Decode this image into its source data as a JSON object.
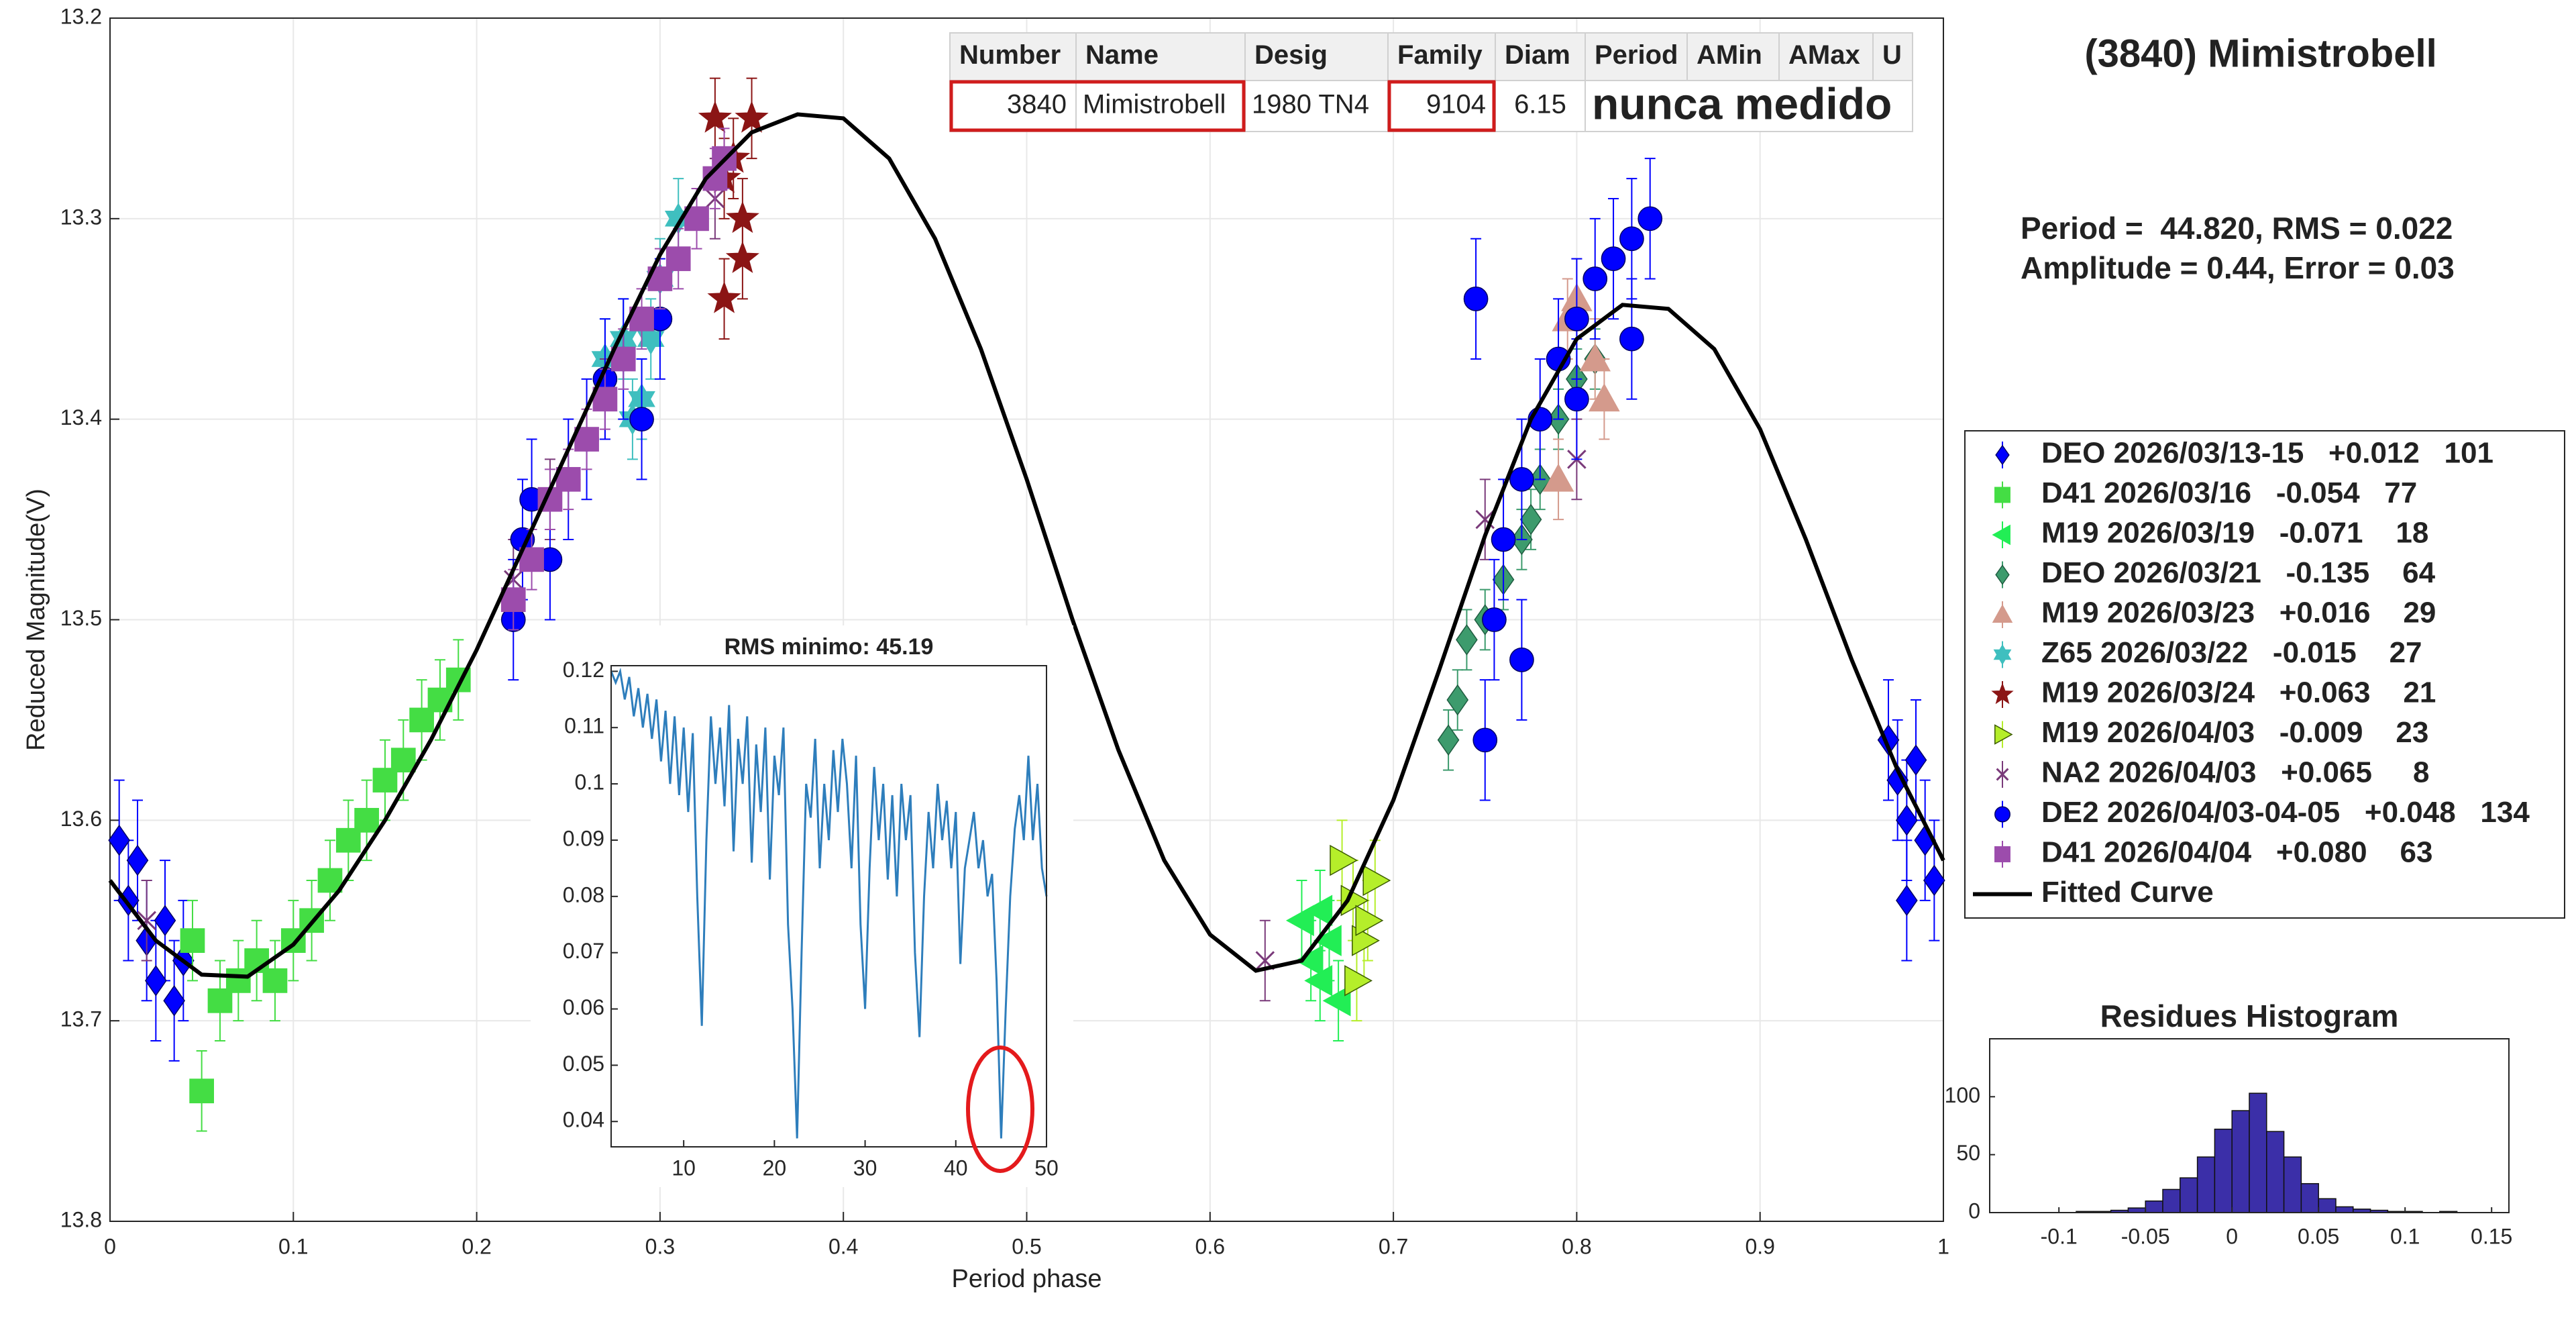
{
  "header": {
    "title": "(3840) Mimistrobell",
    "lines": [
      "Period =  44.820, RMS = 0.022",
      "Amplitude = 0.44, Error = 0.03"
    ]
  },
  "table": {
    "columns": [
      "Number",
      "Name",
      "Desig",
      "Family",
      "Diam",
      "Period",
      "AMin",
      "AMax",
      "U"
    ],
    "rows": [
      [
        "3840",
        "Mimistrobell",
        "1980 TN4",
        "9104",
        "6.15",
        "nunca medido"
      ]
    ]
  },
  "chart_data": [
    {
      "type": "scatter",
      "x_label": "Period phase",
      "y_label": "Reduced Magnitude(V)",
      "xlim": [
        0,
        1
      ],
      "ylim": [
        13.2,
        13.8
      ],
      "y_inverted": true,
      "xticks": [
        0,
        0.1,
        0.2,
        0.3,
        0.4,
        0.5,
        0.6,
        0.7,
        0.8,
        0.9,
        1
      ],
      "yticks": [
        13.2,
        13.3,
        13.4,
        13.5,
        13.6,
        13.7,
        13.8
      ],
      "grid": true,
      "legend": "outside-right",
      "series": [
        {
          "name": "DEO 2026/03/13-15   +0.012   101",
          "color": "#0000ff",
          "marker": "diamond",
          "x": [
            0.005,
            0.01,
            0.015,
            0.02,
            0.025,
            0.03,
            0.035,
            0.04,
            0.97,
            0.975,
            0.98,
            0.985,
            0.99,
            0.995,
            0.98
          ],
          "values": [
            13.61,
            13.64,
            13.62,
            13.66,
            13.68,
            13.65,
            13.69,
            13.67,
            13.56,
            13.58,
            13.6,
            13.57,
            13.61,
            13.63,
            13.64
          ],
          "errors": [
            0.03,
            0.03,
            0.03,
            0.03,
            0.03,
            0.03,
            0.03,
            0.03,
            0.03,
            0.03,
            0.03,
            0.03,
            0.03,
            0.03,
            0.03
          ]
        },
        {
          "name": "D41 2026/03/16   -0.054   77",
          "color": "#44dd44",
          "marker": "square",
          "x": [
            0.045,
            0.05,
            0.06,
            0.07,
            0.08,
            0.09,
            0.1,
            0.11,
            0.12,
            0.13,
            0.14,
            0.15,
            0.16,
            0.17,
            0.18,
            0.19
          ],
          "values": [
            13.66,
            13.735,
            13.69,
            13.68,
            13.67,
            13.68,
            13.66,
            13.65,
            13.63,
            13.61,
            13.6,
            13.58,
            13.57,
            13.55,
            13.54,
            13.53
          ],
          "errors": [
            0.02,
            0.02,
            0.02,
            0.02,
            0.02,
            0.02,
            0.02,
            0.02,
            0.02,
            0.02,
            0.02,
            0.02,
            0.02,
            0.02,
            0.02,
            0.02
          ]
        },
        {
          "name": "M19 2026/03/19   -0.071    18",
          "color": "#22ee55",
          "marker": "triangle-left",
          "x": [
            0.65,
            0.655,
            0.66,
            0.665,
            0.67,
            0.66
          ],
          "values": [
            13.65,
            13.67,
            13.68,
            13.66,
            13.69,
            13.645
          ],
          "errors": [
            0.02,
            0.02,
            0.02,
            0.02,
            0.02,
            0.02
          ]
        },
        {
          "name": "DEO 2026/03/21   -0.135    64",
          "color": "#3d9b6d",
          "marker": "diamond",
          "x": [
            0.73,
            0.735,
            0.74,
            0.75,
            0.76,
            0.77,
            0.775,
            0.78,
            0.79,
            0.8,
            0.81
          ],
          "values": [
            13.56,
            13.54,
            13.51,
            13.5,
            13.48,
            13.46,
            13.45,
            13.43,
            13.4,
            13.38,
            13.37
          ],
          "errors": [
            0.015,
            0.015,
            0.015,
            0.015,
            0.015,
            0.015,
            0.015,
            0.015,
            0.015,
            0.015,
            0.015
          ]
        },
        {
          "name": "M19 2026/03/23   +0.016    29",
          "color": "#d49a8c",
          "marker": "triangle-up",
          "x": [
            0.79,
            0.795,
            0.8,
            0.81,
            0.815
          ],
          "values": [
            13.43,
            13.35,
            13.34,
            13.37,
            13.39
          ],
          "errors": [
            0.02,
            0.02,
            0.02,
            0.02,
            0.02
          ]
        },
        {
          "name": "Z65 2026/03/22   -0.015    27",
          "color": "#3fbfbf",
          "marker": "hexagram",
          "x": [
            0.27,
            0.28,
            0.285,
            0.29,
            0.295,
            0.3,
            0.31
          ],
          "values": [
            13.37,
            13.36,
            13.4,
            13.39,
            13.36,
            13.33,
            13.3
          ],
          "errors": [
            0.02,
            0.02,
            0.02,
            0.02,
            0.02,
            0.02,
            0.02
          ]
        },
        {
          "name": "M19 2026/03/24   +0.063    21",
          "color": "#8b1515",
          "marker": "pentagram",
          "x": [
            0.33,
            0.335,
            0.34,
            0.345,
            0.35,
            0.345,
            0.335
          ],
          "values": [
            13.25,
            13.28,
            13.27,
            13.3,
            13.25,
            13.32,
            13.34
          ],
          "errors": [
            0.02,
            0.02,
            0.02,
            0.02,
            0.02,
            0.02,
            0.02
          ]
        },
        {
          "name": "M19 2026/04/03   -0.009    23",
          "color": "#b5ee2a",
          "marker": "triangle-right",
          "x": [
            0.672,
            0.678,
            0.684,
            0.69,
            0.68,
            0.686
          ],
          "values": [
            13.62,
            13.64,
            13.66,
            13.63,
            13.68,
            13.65
          ],
          "errors": [
            0.02,
            0.02,
            0.02,
            0.02,
            0.02,
            0.02
          ]
        },
        {
          "name": "NA2 2026/04/03   +0.065     8",
          "color": "#7a3a7a",
          "marker": "x",
          "x": [
            0.22,
            0.24,
            0.27,
            0.8,
            0.02,
            0.33,
            0.75,
            0.63
          ],
          "values": [
            13.48,
            13.44,
            13.39,
            13.42,
            13.65,
            13.29,
            13.45,
            13.67
          ],
          "errors": [
            0.02,
            0.02,
            0.02,
            0.02,
            0.02,
            0.02,
            0.02,
            0.02
          ]
        },
        {
          "name": "DE2 2026/04/03-04-05   +0.048   134",
          "color": "#0000ff",
          "marker": "circle",
          "x": [
            0.22,
            0.225,
            0.23,
            0.24,
            0.25,
            0.26,
            0.27,
            0.28,
            0.29,
            0.3,
            0.75,
            0.755,
            0.76,
            0.77,
            0.78,
            0.79,
            0.8,
            0.81,
            0.82,
            0.83,
            0.84,
            0.745,
            0.77,
            0.8,
            0.83
          ],
          "values": [
            13.5,
            13.46,
            13.44,
            13.47,
            13.43,
            13.41,
            13.38,
            13.37,
            13.4,
            13.35,
            13.56,
            13.5,
            13.46,
            13.43,
            13.4,
            13.37,
            13.35,
            13.33,
            13.32,
            13.31,
            13.3,
            13.34,
            13.52,
            13.39,
            13.36
          ],
          "errors": [
            0.03,
            0.03,
            0.03,
            0.03,
            0.03,
            0.03,
            0.03,
            0.03,
            0.03,
            0.03,
            0.03,
            0.03,
            0.03,
            0.03,
            0.03,
            0.03,
            0.03,
            0.03,
            0.03,
            0.03,
            0.03,
            0.03,
            0.03,
            0.03,
            0.03
          ]
        },
        {
          "name": "D41 2026/04/04   +0.080    63",
          "color": "#9c4cac",
          "marker": "square",
          "x": [
            0.22,
            0.23,
            0.24,
            0.25,
            0.26,
            0.27,
            0.28,
            0.29,
            0.3,
            0.31,
            0.32,
            0.33,
            0.335
          ],
          "values": [
            13.49,
            13.47,
            13.44,
            13.43,
            13.41,
            13.39,
            13.37,
            13.35,
            13.33,
            13.32,
            13.3,
            13.28,
            13.27
          ],
          "errors": [
            0.015,
            0.015,
            0.015,
            0.015,
            0.015,
            0.015,
            0.015,
            0.015,
            0.015,
            0.015,
            0.015,
            0.015,
            0.015
          ]
        },
        {
          "name": "Fitted Curve",
          "color": "#000000",
          "marker": "line",
          "x": [
            0,
            0.025,
            0.05,
            0.075,
            0.1,
            0.125,
            0.15,
            0.175,
            0.2,
            0.225,
            0.25,
            0.275,
            0.3,
            0.325,
            0.35,
            0.375,
            0.4,
            0.425,
            0.45,
            0.475,
            0.5,
            0.525,
            0.55,
            0.575,
            0.6,
            0.625,
            0.65,
            0.675,
            0.7,
            0.725,
            0.75,
            0.775,
            0.8,
            0.825,
            0.85,
            0.875,
            0.9,
            0.925,
            0.95,
            0.975,
            1
          ],
          "values": [
            13.63,
            13.66,
            13.677,
            13.678,
            13.662,
            13.635,
            13.6,
            13.56,
            13.515,
            13.465,
            13.415,
            13.365,
            13.318,
            13.28,
            13.257,
            13.248,
            13.25,
            13.27,
            13.31,
            13.365,
            13.43,
            13.5,
            13.565,
            13.62,
            13.657,
            13.675,
            13.67,
            13.64,
            13.59,
            13.525,
            13.458,
            13.4,
            13.36,
            13.343,
            13.345,
            13.365,
            13.405,
            13.46,
            13.52,
            13.575,
            13.62
          ]
        }
      ]
    },
    {
      "type": "line",
      "title": "RMS minimo: 45.19",
      "color": "#2e7ebc",
      "xlim": [
        2,
        50
      ],
      "ylim": [
        0.0355,
        0.121
      ],
      "xticks": [
        10,
        20,
        30,
        40,
        50
      ],
      "yticks": [
        0.04,
        0.05,
        0.06,
        0.07,
        0.08,
        0.09,
        0.1,
        0.11,
        0.12
      ],
      "x": [
        2,
        2.5,
        3,
        3.5,
        4,
        4.5,
        5,
        5.5,
        6,
        6.5,
        7,
        7.5,
        8,
        8.5,
        9,
        9.5,
        10,
        10.5,
        11,
        11.5,
        12,
        12.5,
        13,
        13.5,
        14,
        14.5,
        15,
        15.5,
        16,
        16.5,
        17,
        17.5,
        18,
        18.5,
        19,
        19.5,
        20,
        20.5,
        21,
        21.5,
        22,
        22.5,
        23,
        23.5,
        24,
        24.5,
        25,
        25.5,
        26,
        26.5,
        27,
        27.5,
        28,
        28.5,
        29,
        29.5,
        30,
        30.5,
        31,
        31.5,
        32,
        32.5,
        33,
        33.5,
        34,
        34.5,
        35,
        35.5,
        36,
        36.5,
        37,
        37.5,
        38,
        38.5,
        39,
        39.5,
        40,
        40.5,
        41,
        41.5,
        42,
        42.5,
        43,
        43.5,
        44,
        44.5,
        45,
        45.5,
        46,
        46.5,
        47,
        47.5,
        48,
        48.5,
        49,
        49.5,
        50
      ],
      "values": [
        0.12,
        0.118,
        0.12,
        0.115,
        0.119,
        0.112,
        0.117,
        0.11,
        0.116,
        0.108,
        0.115,
        0.104,
        0.113,
        0.1,
        0.112,
        0.098,
        0.11,
        0.095,
        0.109,
        0.08,
        0.057,
        0.09,
        0.112,
        0.1,
        0.11,
        0.096,
        0.114,
        0.088,
        0.108,
        0.1,
        0.112,
        0.086,
        0.107,
        0.095,
        0.11,
        0.083,
        0.105,
        0.098,
        0.11,
        0.075,
        0.06,
        0.037,
        0.07,
        0.1,
        0.094,
        0.108,
        0.085,
        0.1,
        0.09,
        0.106,
        0.095,
        0.108,
        0.1,
        0.085,
        0.105,
        0.075,
        0.06,
        0.085,
        0.103,
        0.09,
        0.1,
        0.083,
        0.098,
        0.08,
        0.1,
        0.09,
        0.098,
        0.07,
        0.055,
        0.08,
        0.095,
        0.085,
        0.1,
        0.09,
        0.097,
        0.085,
        0.095,
        0.068,
        0.085,
        0.09,
        0.095,
        0.085,
        0.09,
        0.08,
        0.084,
        0.065,
        0.037,
        0.06,
        0.08,
        0.092,
        0.098,
        0.09,
        0.105,
        0.09,
        0.1,
        0.085,
        0.08
      ]
    },
    {
      "type": "histogram",
      "title": "Residues Histogram",
      "color": "#3b2fa8",
      "xlim": [
        -0.14,
        0.16
      ],
      "ylim": [
        0,
        150
      ],
      "xticks": [
        -0.1,
        -0.05,
        0,
        0.05,
        0.1,
        0.15
      ],
      "yticks": [
        0,
        50,
        100
      ],
      "bins": [
        -0.09,
        -0.08,
        -0.07,
        -0.06,
        -0.05,
        -0.04,
        -0.03,
        -0.02,
        -0.01,
        0,
        0.01,
        0.02,
        0.03,
        0.04,
        0.05,
        0.06,
        0.07,
        0.08,
        0.09,
        0.1,
        0.11,
        0.12,
        0.13
      ],
      "values": [
        1,
        1,
        2,
        4,
        10,
        20,
        30,
        48,
        72,
        88,
        103,
        70,
        48,
        25,
        12,
        5,
        3,
        2,
        1,
        1,
        0,
        1
      ]
    }
  ]
}
